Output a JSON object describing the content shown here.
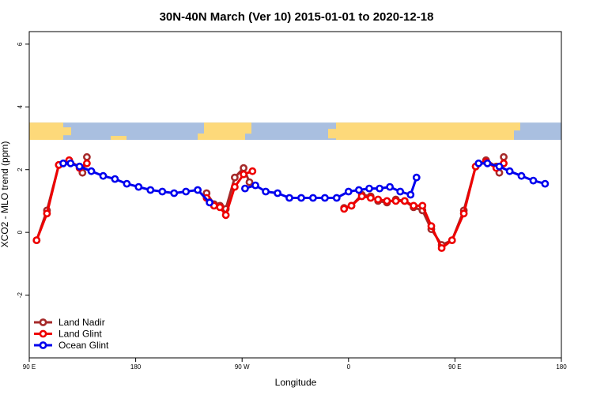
{
  "chart_data": {
    "type": "line",
    "title": "30N-40N March (Ver 10)   2015-01-01 to 2020-12-18",
    "xlabel": "Longitude",
    "ylabel": "XCO2 - MLO trend (ppm)",
    "xlim": [
      90,
      450
    ],
    "ylim": [
      -4,
      6.4
    ],
    "x_ticks": [
      {
        "value": 90,
        "label": "90 E"
      },
      {
        "value": 162,
        "label": "180"
      },
      {
        "value": 234,
        "label": "90 W"
      },
      {
        "value": 306,
        "label": "0"
      },
      {
        "value": 378,
        "label": "90 E"
      },
      {
        "value": 450,
        "label": "180"
      }
    ],
    "y_ticks": [
      {
        "value": -2,
        "label": "-2"
      },
      {
        "value": 0,
        "label": "0"
      },
      {
        "value": 2,
        "label": "2"
      },
      {
        "value": 4,
        "label": "4"
      },
      {
        "value": 6,
        "label": "6"
      }
    ],
    "map_band": {
      "ymin": 2.95,
      "ymax": 3.5,
      "ocean_color": "#a9bfe0",
      "land_color": "#fdd97a"
    },
    "legend_position": "bottom-left",
    "series": [
      {
        "name": "Land Nadir",
        "color": "#a52a2a",
        "points": [
          [
            95,
            -0.25
          ],
          [
            102,
            0.7
          ],
          [
            110,
            2.15
          ],
          [
            117,
            2.25
          ],
          [
            124,
            2.1
          ],
          [
            126,
            1.9
          ],
          [
            129,
            2.4
          ],
          [
            210,
            1.25
          ],
          [
            215,
            0.9
          ],
          [
            219,
            0.85
          ],
          [
            223,
            0.75
          ],
          [
            229,
            1.75
          ],
          [
            235,
            2.05
          ],
          [
            239,
            1.6
          ],
          [
            303,
            0.78
          ],
          [
            308,
            0.85
          ],
          [
            315,
            1.2
          ],
          [
            321,
            1.15
          ],
          [
            326,
            1.0
          ],
          [
            332,
            0.95
          ],
          [
            338,
            1.05
          ],
          [
            344,
            1.0
          ],
          [
            350,
            0.8
          ],
          [
            356,
            0.7
          ],
          [
            362,
            0.1
          ],
          [
            369,
            -0.4
          ],
          [
            376,
            -0.25
          ],
          [
            384,
            0.7
          ],
          [
            392,
            2.1
          ],
          [
            399,
            2.3
          ],
          [
            406,
            2.1
          ],
          [
            408,
            1.9
          ],
          [
            411,
            2.4
          ]
        ]
      },
      {
        "name": "Land Glint",
        "color": "#ee0000",
        "points": [
          [
            95,
            -0.25
          ],
          [
            102,
            0.6
          ],
          [
            110,
            2.15
          ],
          [
            117,
            2.3
          ],
          [
            124,
            2.05
          ],
          [
            129,
            2.2
          ],
          [
            210,
            1.1
          ],
          [
            215,
            0.85
          ],
          [
            219,
            0.8
          ],
          [
            223,
            0.55
          ],
          [
            229,
            1.45
          ],
          [
            235,
            1.85
          ],
          [
            241,
            1.95
          ],
          [
            303,
            0.75
          ],
          [
            308,
            0.85
          ],
          [
            315,
            1.15
          ],
          [
            321,
            1.1
          ],
          [
            326,
            1.05
          ],
          [
            332,
            1.0
          ],
          [
            338,
            1.0
          ],
          [
            344,
            1.0
          ],
          [
            350,
            0.85
          ],
          [
            356,
            0.85
          ],
          [
            362,
            0.2
          ],
          [
            369,
            -0.5
          ],
          [
            376,
            -0.25
          ],
          [
            384,
            0.6
          ],
          [
            392,
            2.1
          ],
          [
            399,
            2.25
          ],
          [
            406,
            2.05
          ],
          [
            411,
            2.2
          ]
        ]
      },
      {
        "name": "Ocean Glint",
        "color": "#0000ee",
        "points": [
          [
            113,
            2.2
          ],
          [
            118,
            2.2
          ],
          [
            124,
            2.1
          ],
          [
            132,
            1.95
          ],
          [
            140,
            1.8
          ],
          [
            148,
            1.7
          ],
          [
            156,
            1.55
          ],
          [
            164,
            1.45
          ],
          [
            172,
            1.35
          ],
          [
            180,
            1.3
          ],
          [
            188,
            1.25
          ],
          [
            196,
            1.3
          ],
          [
            204,
            1.35
          ],
          [
            212,
            0.95
          ],
          [
            236,
            1.4
          ],
          [
            243,
            1.5
          ],
          [
            250,
            1.3
          ],
          [
            258,
            1.25
          ],
          [
            266,
            1.1
          ],
          [
            274,
            1.1
          ],
          [
            282,
            1.1
          ],
          [
            290,
            1.1
          ],
          [
            298,
            1.1
          ],
          [
            306,
            1.3
          ],
          [
            313,
            1.35
          ],
          [
            320,
            1.4
          ],
          [
            327,
            1.4
          ],
          [
            334,
            1.45
          ],
          [
            341,
            1.3
          ],
          [
            348,
            1.2
          ],
          [
            352,
            1.75
          ],
          [
            394,
            2.2
          ],
          [
            400,
            2.2
          ],
          [
            408,
            2.1
          ],
          [
            415,
            1.95
          ],
          [
            423,
            1.8
          ],
          [
            431,
            1.65
          ],
          [
            439,
            1.55
          ]
        ]
      }
    ]
  }
}
